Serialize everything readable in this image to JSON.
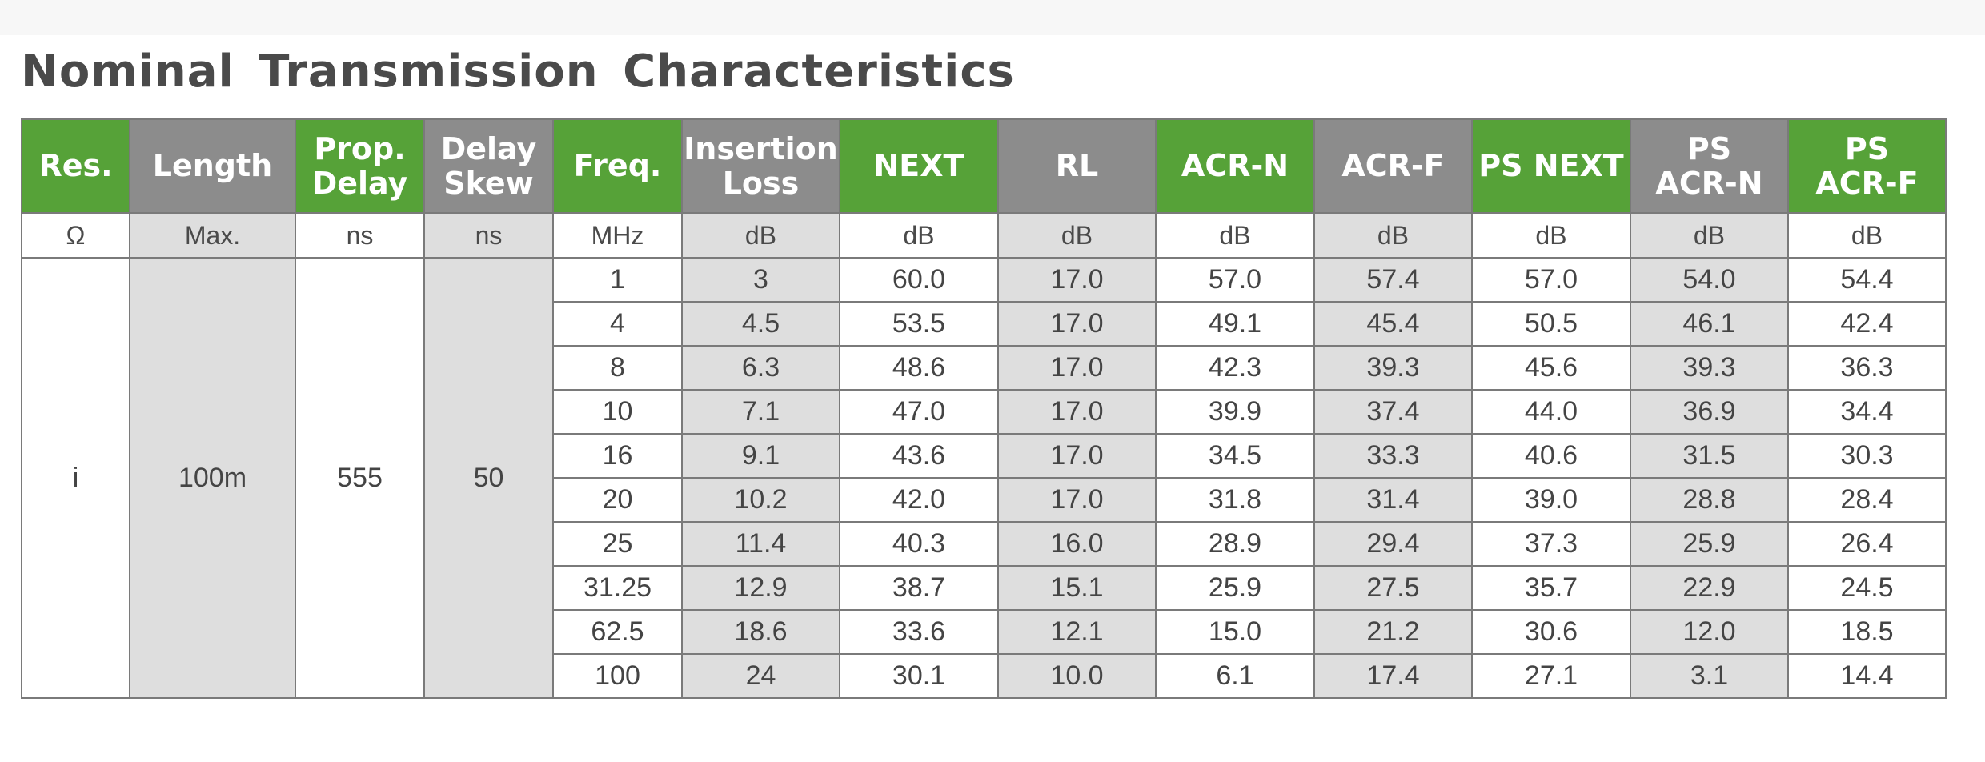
{
  "title": "Nominal Transmission Characteristics",
  "colors": {
    "green_header": "#56a238",
    "gray_header": "#8c8c8c",
    "shaded_column": "#dedede",
    "title_text": "#4a4a4a"
  },
  "table": {
    "headers": [
      {
        "lines": [
          "Res."
        ],
        "style": "green"
      },
      {
        "lines": [
          "Length"
        ],
        "style": "gray"
      },
      {
        "lines": [
          "Prop.",
          "Delay"
        ],
        "style": "green"
      },
      {
        "lines": [
          "Delay",
          "Skew"
        ],
        "style": "gray"
      },
      {
        "lines": [
          "Freq."
        ],
        "style": "green"
      },
      {
        "lines": [
          "Insertion",
          "Loss"
        ],
        "style": "gray"
      },
      {
        "lines": [
          "NEXT"
        ],
        "style": "green"
      },
      {
        "lines": [
          "RL"
        ],
        "style": "gray"
      },
      {
        "lines": [
          "ACR-N"
        ],
        "style": "green"
      },
      {
        "lines": [
          "ACR-F"
        ],
        "style": "gray"
      },
      {
        "lines": [
          "PS NEXT"
        ],
        "style": "green"
      },
      {
        "lines": [
          "PS",
          "ACR-N"
        ],
        "style": "gray"
      },
      {
        "lines": [
          "PS",
          "ACR-F"
        ],
        "style": "green"
      }
    ],
    "units": [
      "Ω",
      "Max.",
      "ns",
      "ns",
      "MHz",
      "dB",
      "dB",
      "dB",
      "dB",
      "dB",
      "dB",
      "dB",
      "dB"
    ],
    "fixed": {
      "res": "i",
      "length": "100m",
      "prop_delay": "555",
      "delay_skew": "50"
    },
    "rows": [
      [
        "1",
        "3",
        "60.0",
        "17.0",
        "57.0",
        "57.4",
        "57.0",
        "54.0",
        "54.4"
      ],
      [
        "4",
        "4.5",
        "53.5",
        "17.0",
        "49.1",
        "45.4",
        "50.5",
        "46.1",
        "42.4"
      ],
      [
        "8",
        "6.3",
        "48.6",
        "17.0",
        "42.3",
        "39.3",
        "45.6",
        "39.3",
        "36.3"
      ],
      [
        "10",
        "7.1",
        "47.0",
        "17.0",
        "39.9",
        "37.4",
        "44.0",
        "36.9",
        "34.4"
      ],
      [
        "16",
        "9.1",
        "43.6",
        "17.0",
        "34.5",
        "33.3",
        "40.6",
        "31.5",
        "30.3"
      ],
      [
        "20",
        "10.2",
        "42.0",
        "17.0",
        "31.8",
        "31.4",
        "39.0",
        "28.8",
        "28.4"
      ],
      [
        "25",
        "11.4",
        "40.3",
        "16.0",
        "28.9",
        "29.4",
        "37.3",
        "25.9",
        "26.4"
      ],
      [
        "31.25",
        "12.9",
        "38.7",
        "15.1",
        "25.9",
        "27.5",
        "35.7",
        "22.9",
        "24.5"
      ],
      [
        "62.5",
        "18.6",
        "33.6",
        "12.1",
        "15.0",
        "21.2",
        "30.6",
        "12.0",
        "18.5"
      ],
      [
        "100",
        "24",
        "30.1",
        "10.0",
        "6.1",
        "17.4",
        "27.1",
        "3.1",
        "14.4"
      ]
    ]
  }
}
